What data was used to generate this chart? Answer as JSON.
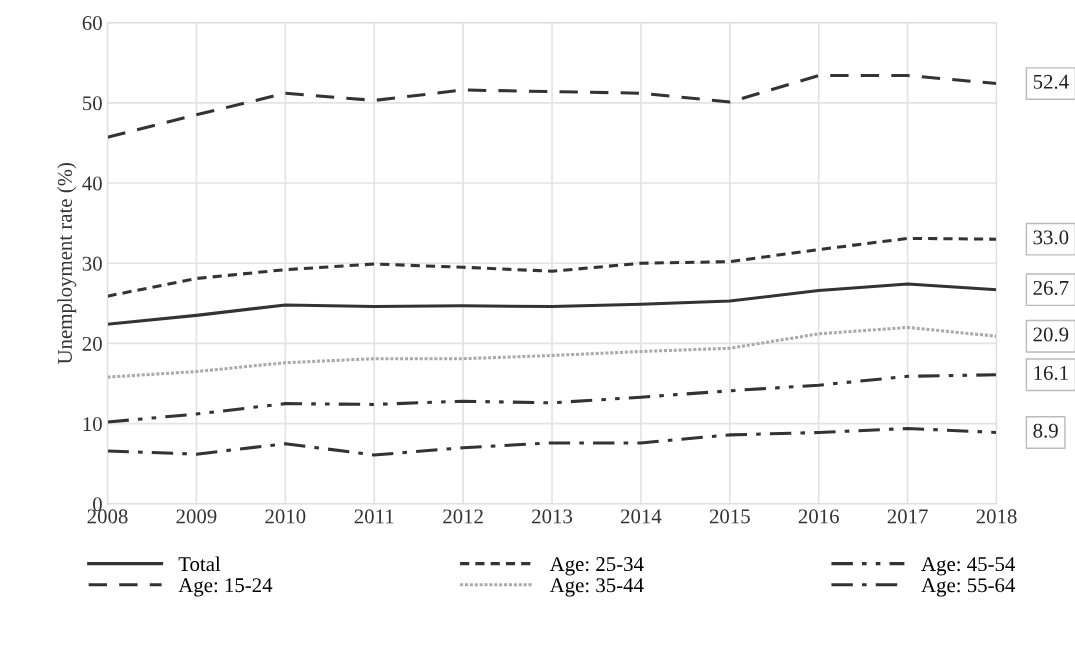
{
  "chart_data": {
    "type": "line",
    "ylabel": "Unemployment rate (%)",
    "categories": [
      "2008",
      "2009",
      "2010",
      "2011",
      "2012",
      "2013",
      "2014",
      "2015",
      "2016",
      "2017",
      "2018"
    ],
    "ylim": [
      0,
      60
    ],
    "yticks": [
      0,
      10,
      20,
      30,
      40,
      50,
      60
    ],
    "grid": true,
    "legend": "bottom",
    "series": [
      {
        "name": "Total",
        "color": "#333333",
        "line_style": "solid",
        "values": [
          22.4,
          23.5,
          24.8,
          24.6,
          24.7,
          24.6,
          24.9,
          25.3,
          26.6,
          27.4,
          26.7
        ],
        "value_labels": [
          null,
          null,
          null,
          null,
          null,
          null,
          null,
          null,
          null,
          null,
          "26.7"
        ]
      },
      {
        "name": "Age: 15-24",
        "color": "#333333",
        "line_style": "dashed",
        "values": [
          45.7,
          48.5,
          51.2,
          50.3,
          51.6,
          51.4,
          51.2,
          50.1,
          53.4,
          53.4,
          52.4
        ],
        "value_labels": [
          null,
          null,
          null,
          null,
          null,
          null,
          null,
          null,
          null,
          null,
          "52.4"
        ]
      },
      {
        "name": "Age: 25-34",
        "color": "#333333",
        "line_style": "dotted",
        "values": [
          25.9,
          28.1,
          29.2,
          29.9,
          29.5,
          29.0,
          30.0,
          30.2,
          31.7,
          33.1,
          33.0
        ],
        "value_labels": [
          null,
          null,
          null,
          null,
          null,
          null,
          null,
          null,
          null,
          null,
          "33.0"
        ]
      },
      {
        "name": "Age: 35-44",
        "color": "#aaaaaa",
        "line_style": "fine_dotted",
        "values": [
          15.8,
          16.5,
          17.6,
          18.1,
          18.1,
          18.5,
          19.0,
          19.4,
          21.2,
          22.0,
          20.9
        ],
        "value_labels": [
          null,
          null,
          null,
          null,
          null,
          null,
          null,
          null,
          null,
          null,
          "20.9"
        ]
      },
      {
        "name": "Age: 45-54",
        "color": "#333333",
        "line_style": "dashdotdot",
        "values": [
          10.2,
          11.2,
          12.5,
          12.4,
          12.8,
          12.6,
          13.3,
          14.1,
          14.8,
          15.9,
          16.1
        ],
        "value_labels": [
          null,
          null,
          null,
          null,
          null,
          null,
          null,
          null,
          null,
          null,
          "16.1"
        ]
      },
      {
        "name": "Age: 55-64",
        "color": "#333333",
        "line_style": "dashdot",
        "values": [
          6.6,
          6.2,
          7.5,
          6.1,
          7.0,
          7.6,
          7.6,
          8.6,
          8.9,
          9.4,
          8.9
        ],
        "value_labels": [
          null,
          null,
          null,
          null,
          null,
          null,
          null,
          null,
          null,
          null,
          "8.9"
        ]
      }
    ]
  }
}
